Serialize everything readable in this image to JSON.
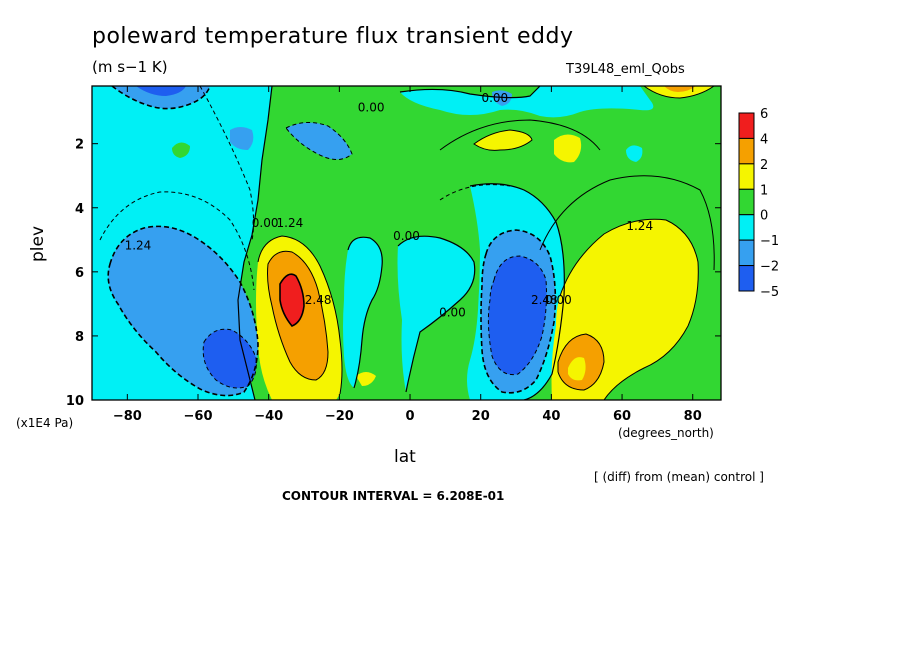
{
  "title": "poleward temperature flux transient eddy",
  "units": "(m s−1 K)",
  "run_id": "T39L48_eml_Qobs",
  "y_unit": "(x1E4 Pa)",
  "x_unit": "(degrees_north)",
  "diff_note": "[ (diff) from (mean) control ]",
  "contour_interval": "CONTOUR INTERVAL = 6.208E-01",
  "colors": {
    "c_lt5": "#1e5ef0",
    "c_m5_m2": "#1e5ef0",
    "c_m2_m1": "#36a0f0",
    "c_m1_0": "#00f0f5",
    "c_0_1": "#32d732",
    "c_1_2": "#f5f500",
    "c_2_4": "#f5a000",
    "c_4_6": "#f01e1e"
  },
  "chart_data": {
    "type": "heatmap",
    "subtype": "filled contour",
    "xlabel": "lat",
    "ylabel": "plev",
    "xlim": [
      -90,
      88
    ],
    "ylim": [
      10,
      0.2
    ],
    "x_ticks": [
      -80,
      -60,
      -40,
      -20,
      0,
      20,
      40,
      60,
      80
    ],
    "x_tick_labels": [
      "−80",
      "−60",
      "−40",
      "−20",
      "0",
      "20",
      "40",
      "60",
      "80"
    ],
    "y_ticks": [
      2,
      4,
      6,
      8,
      10
    ],
    "y_tick_labels": [
      "2",
      "4",
      "6",
      "8",
      "10"
    ],
    "colorbar": {
      "boundaries": [
        -5,
        -2,
        -1,
        0,
        1,
        2,
        4,
        6
      ],
      "labels": [
        "6",
        "4",
        "2",
        "1",
        "0",
        "−1",
        "−2",
        "−5"
      ],
      "colors": [
        "#1e5ef0",
        "#36a0f0",
        "#00f0f5",
        "#32d732",
        "#f5f500",
        "#f5a000",
        "#f01e1e"
      ]
    },
    "contour_labels": [
      {
        "text": "0.00",
        "lat": -11,
        "plev": 1.0
      },
      {
        "text": "0.00",
        "lat": 24,
        "plev": 0.7
      },
      {
        "text": "0.00",
        "lat": -41,
        "plev": 4.6
      },
      {
        "text": "1.24",
        "lat": -34,
        "plev": 4.6
      },
      {
        "text": "1.24",
        "lat": -77,
        "plev": 5.3
      },
      {
        "text": "0.00",
        "lat": -1,
        "plev": 5.0
      },
      {
        "text": "2.48",
        "lat": -26,
        "plev": 7.0
      },
      {
        "text": "0.00",
        "lat": 12,
        "plev": 7.4
      },
      {
        "text": "2.48",
        "lat": 38,
        "plev": 7.0
      },
      {
        "text": "0.00",
        "lat": 42,
        "plev": 7.0
      },
      {
        "text": "1.24",
        "lat": 65,
        "plev": 4.7
      }
    ],
    "field_features": [
      {
        "category": "<-2",
        "lat": -50,
        "plev": 8.6
      },
      {
        "category": "-2 to -1",
        "lat": -64,
        "plev": 7.0
      },
      {
        "category": "4 to 6",
        "lat": -33,
        "plev": 6.8
      },
      {
        "category": "2 to 4",
        "lat": -31,
        "plev": 7.3
      },
      {
        "category": "1 to 2",
        "lat": -33,
        "plev": 7.0
      },
      {
        "category": "<-2",
        "lat": 32,
        "plev": 7.5
      },
      {
        "category": "2 to 4",
        "lat": 50,
        "plev": 8.8
      },
      {
        "category": "1 to 2",
        "lat": 66,
        "plev": 6.6
      },
      {
        "category": "-1 to 0",
        "lat": 0,
        "plev": 5.9
      },
      {
        "category": "1 to 2",
        "lat": 72,
        "plev": 0.2
      },
      {
        "category": "-2 to -1",
        "lat": -72,
        "plev": 0.4
      }
    ]
  }
}
